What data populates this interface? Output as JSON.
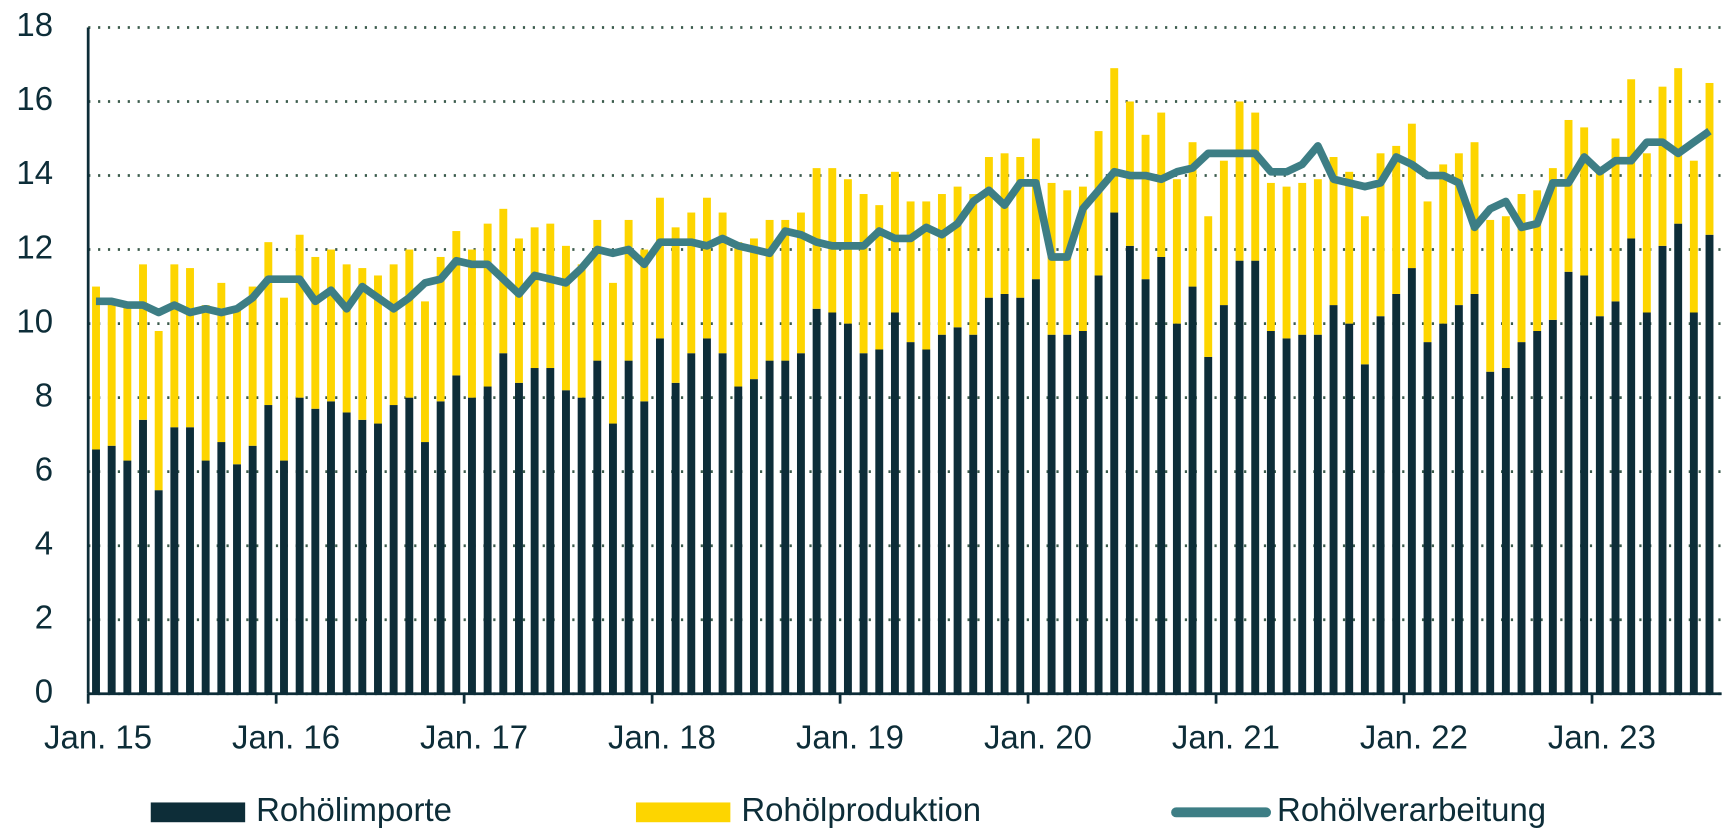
{
  "chart_data": {
    "type": "bar",
    "categories": [
      "Jan. 15",
      null,
      null,
      null,
      null,
      null,
      null,
      null,
      null,
      null,
      null,
      null,
      "Jan. 16",
      null,
      null,
      null,
      null,
      null,
      null,
      null,
      null,
      null,
      null,
      null,
      "Jan. 17",
      null,
      null,
      null,
      null,
      null,
      null,
      null,
      null,
      null,
      null,
      null,
      "Jan. 18",
      null,
      null,
      null,
      null,
      null,
      null,
      null,
      null,
      null,
      null,
      null,
      "Jan. 19",
      null,
      null,
      null,
      null,
      null,
      null,
      null,
      null,
      null,
      null,
      null,
      "Jan. 20",
      null,
      null,
      null,
      null,
      null,
      null,
      null,
      null,
      null,
      null,
      null,
      "Jan. 21",
      null,
      null,
      null,
      null,
      null,
      null,
      null,
      null,
      null,
      null,
      null,
      "Jan. 22",
      null,
      null,
      null,
      null,
      null,
      null,
      null,
      null,
      null,
      null,
      null,
      "Jan. 23",
      null,
      null,
      null,
      null,
      null,
      null,
      null
    ],
    "series": [
      {
        "name": "Rohölimporte",
        "type": "bar",
        "color": "#0d2d38",
        "values": [
          6.6,
          6.7,
          6.3,
          7.4,
          5.5,
          7.2,
          7.2,
          6.3,
          6.8,
          6.2,
          6.7,
          7.8,
          6.3,
          8.0,
          7.7,
          7.9,
          7.6,
          7.4,
          7.3,
          7.8,
          8.0,
          6.8,
          7.9,
          8.6,
          8.0,
          8.3,
          9.2,
          8.4,
          8.8,
          8.8,
          8.2,
          8.0,
          9.0,
          7.3,
          9.0,
          7.9,
          9.6,
          8.4,
          9.2,
          9.6,
          9.2,
          8.3,
          8.5,
          9.0,
          9.0,
          9.2,
          10.4,
          10.3,
          10.0,
          9.2,
          9.3,
          10.3,
          9.5,
          9.3,
          9.7,
          9.9,
          9.7,
          10.7,
          10.8,
          10.7,
          11.2,
          9.7,
          9.7,
          9.8,
          11.3,
          13.0,
          12.1,
          11.2,
          11.8,
          10.0,
          11.0,
          9.1,
          10.5,
          11.7,
          11.7,
          9.8,
          9.6,
          9.7,
          9.7,
          10.5,
          10.0,
          8.9,
          10.2,
          10.8,
          11.5,
          9.5,
          10.0,
          10.5,
          10.8,
          8.7,
          8.8,
          9.5,
          9.8,
          10.1,
          11.4,
          11.3,
          10.2,
          10.6,
          12.3,
          10.3,
          12.1,
          12.7,
          10.3,
          12.4
        ]
      },
      {
        "name": "Rohölproduktion",
        "type": "bar",
        "color": "#fdd500",
        "values": [
          4.4,
          3.9,
          4.2,
          4.2,
          4.3,
          4.4,
          4.3,
          4.2,
          4.3,
          4.2,
          4.3,
          4.4,
          4.4,
          4.4,
          4.1,
          4.1,
          4.0,
          4.1,
          4.0,
          3.8,
          4.0,
          3.8,
          3.9,
          3.9,
          4.0,
          4.4,
          3.9,
          3.9,
          3.8,
          3.9,
          3.9,
          3.6,
          3.8,
          3.8,
          3.8,
          4.1,
          3.8,
          4.2,
          3.8,
          3.8,
          3.8,
          3.9,
          3.8,
          3.8,
          3.8,
          3.8,
          3.8,
          3.9,
          3.9,
          4.3,
          3.9,
          3.8,
          3.8,
          4.0,
          3.8,
          3.8,
          3.8,
          3.8,
          3.8,
          3.8,
          3.8,
          4.1,
          3.9,
          3.9,
          3.9,
          3.9,
          3.9,
          3.9,
          3.9,
          3.9,
          3.9,
          3.8,
          3.9,
          4.3,
          4.0,
          4.0,
          4.1,
          4.1,
          4.2,
          4.0,
          4.1,
          4.0,
          4.4,
          4.0,
          3.9,
          3.8,
          4.3,
          4.1,
          4.1,
          4.1,
          4.1,
          4.0,
          3.8,
          4.1,
          4.1,
          4.0,
          4.0,
          4.4,
          4.3,
          4.3,
          4.3,
          4.2,
          4.1,
          4.1
        ]
      },
      {
        "name": "Rohölverarbeitung",
        "type": "line",
        "color": "#3d7e85",
        "values": [
          10.6,
          10.6,
          10.5,
          10.5,
          10.3,
          10.5,
          10.3,
          10.4,
          10.3,
          10.4,
          10.7,
          11.2,
          11.2,
          11.2,
          10.6,
          10.9,
          10.4,
          11.0,
          10.7,
          10.4,
          10.7,
          11.1,
          11.2,
          11.7,
          11.6,
          11.6,
          11.2,
          10.8,
          11.3,
          11.2,
          11.1,
          11.5,
          12.0,
          11.9,
          12.0,
          11.6,
          12.2,
          12.2,
          12.2,
          12.1,
          12.3,
          12.1,
          12.0,
          11.9,
          12.5,
          12.4,
          12.2,
          12.1,
          12.1,
          12.1,
          12.5,
          12.3,
          12.3,
          12.6,
          12.4,
          12.7,
          13.3,
          13.6,
          13.2,
          13.8,
          13.8,
          11.8,
          11.8,
          13.1,
          13.6,
          14.1,
          14.0,
          14.0,
          13.9,
          14.1,
          14.2,
          14.6,
          14.6,
          14.6,
          14.6,
          14.1,
          14.1,
          14.3,
          14.8,
          13.9,
          13.8,
          13.7,
          13.8,
          14.5,
          14.3,
          14.0,
          14.0,
          13.8,
          12.6,
          13.1,
          13.3,
          12.6,
          12.7,
          13.8,
          13.8,
          14.5,
          14.1,
          14.4,
          14.4,
          14.9,
          14.9,
          14.6,
          14.9,
          15.2
        ]
      }
    ],
    "ylim": [
      0,
      18
    ],
    "yticks": [
      0,
      2,
      4,
      6,
      8,
      10,
      12,
      14,
      16,
      18
    ],
    "grid": true,
    "legend": "bottom"
  }
}
